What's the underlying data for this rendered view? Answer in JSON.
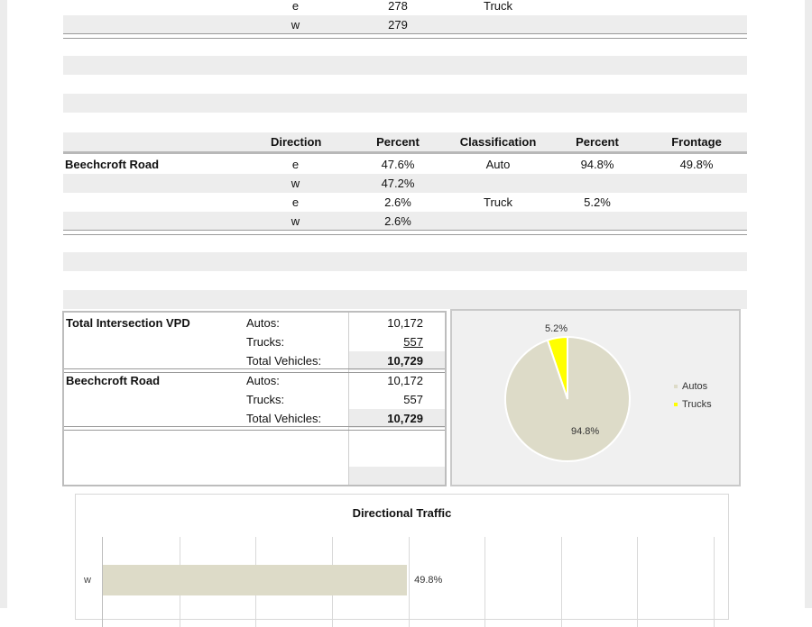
{
  "top_rows": [
    {
      "direction": "e",
      "percent": "278",
      "classification": "Truck"
    },
    {
      "direction": "w",
      "percent": "279",
      "classification": ""
    }
  ],
  "table": {
    "headers": {
      "direction": "Direction",
      "percent": "Percent",
      "classification": "Classification",
      "percent2": "Percent",
      "frontage": "Frontage"
    },
    "rows": [
      {
        "label": "Beechcroft Road",
        "direction": "e",
        "percent": "47.6%",
        "classification": "Auto",
        "percent2": "94.8%",
        "frontage": "49.8%"
      },
      {
        "label": "",
        "direction": "w",
        "percent": "47.2%",
        "classification": "",
        "percent2": "",
        "frontage": ""
      },
      {
        "label": "",
        "direction": "e",
        "percent": "2.6%",
        "classification": "Truck",
        "percent2": "5.2%",
        "frontage": ""
      },
      {
        "label": "",
        "direction": "w",
        "percent": "2.6%",
        "classification": "",
        "percent2": "",
        "frontage": ""
      }
    ]
  },
  "summary": {
    "intersection": {
      "label": "Total Intersection VPD",
      "autos_label": "Autos:",
      "autos": "10,172",
      "trucks_label": "Trucks:",
      "trucks": "557",
      "total_label": "Total Vehicles:",
      "total": "10,729"
    },
    "road": {
      "label": "Beechcroft Road",
      "autos_label": "Autos:",
      "autos": "10,172",
      "trucks_label": "Trucks:",
      "trucks": "557",
      "total_label": "Total Vehicles:",
      "total": "10,729"
    }
  },
  "chart_data": [
    {
      "type": "pie",
      "title": "",
      "labels": [
        "Autos",
        "Trucks"
      ],
      "values": [
        94.8,
        5.2
      ],
      "data_labels": [
        "94.8%",
        "5.2%"
      ],
      "colors": [
        "#dddbc8",
        "#ffff00"
      ],
      "legend": "right"
    },
    {
      "type": "bar",
      "orientation": "horizontal",
      "title": "Directional Traffic",
      "categories": [
        "w"
      ],
      "values": [
        49.8
      ],
      "data_labels": [
        "49.8%"
      ],
      "xlim": [
        0,
        100
      ],
      "grid": true,
      "colors": [
        "#dddbc8"
      ]
    }
  ]
}
